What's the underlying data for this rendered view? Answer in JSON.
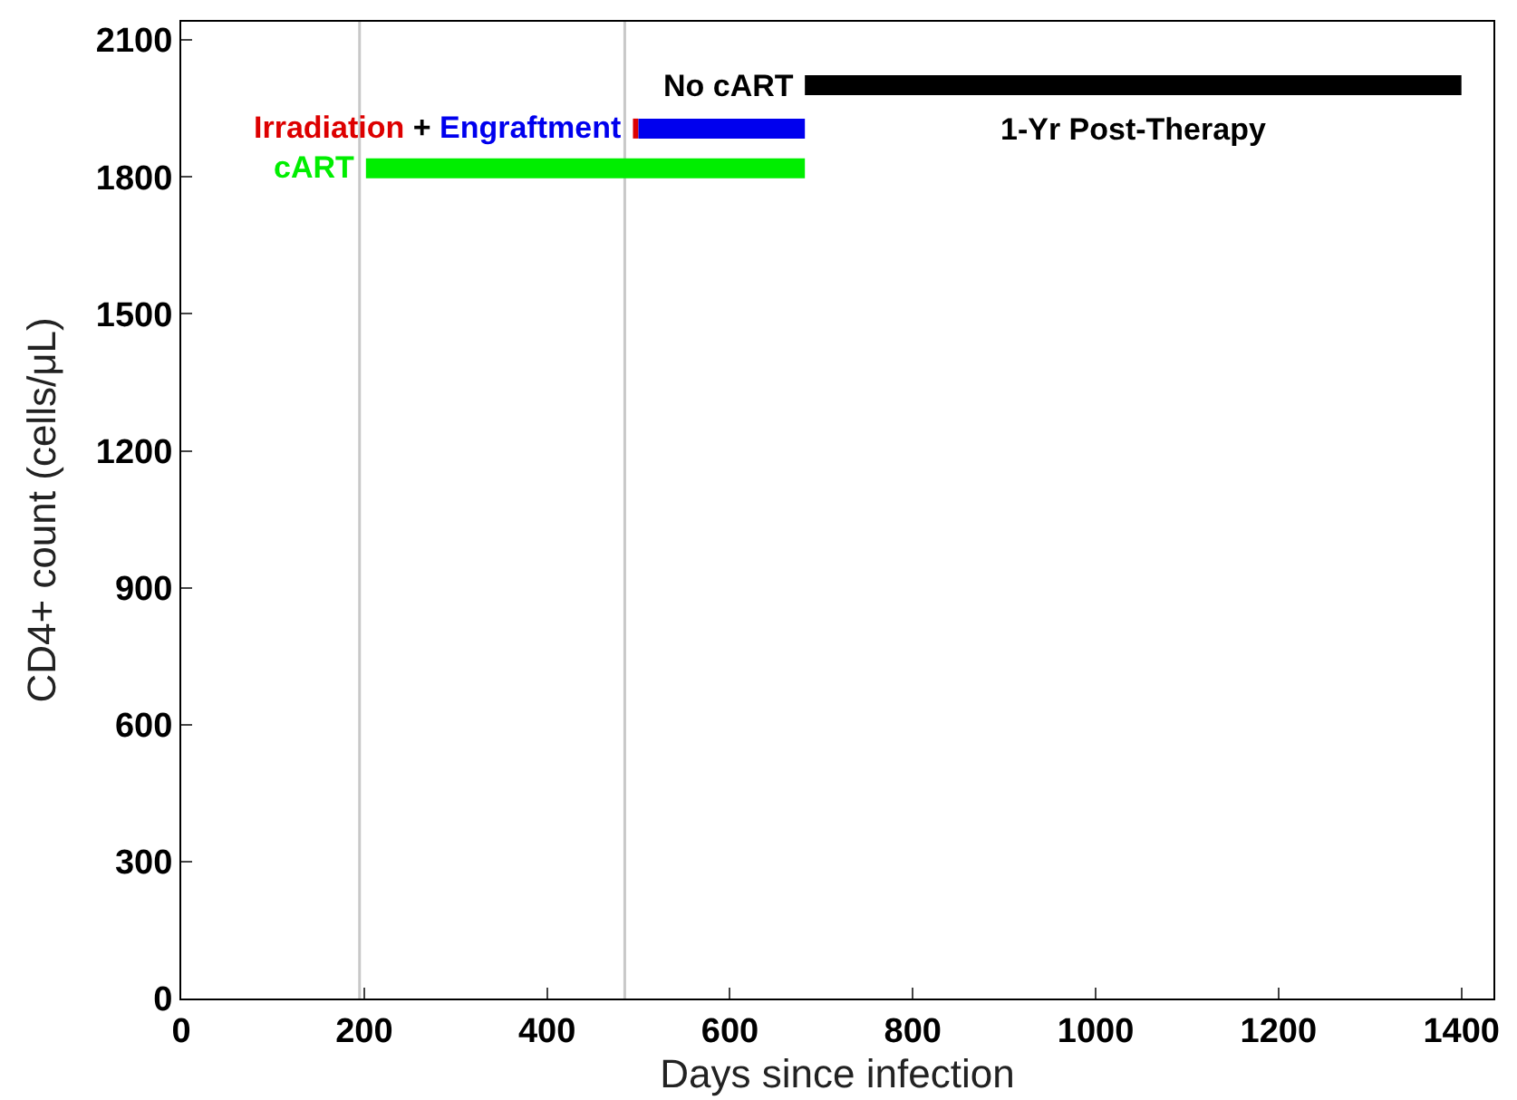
{
  "chart_data": {
    "type": "line",
    "xlabel": "Days since infection",
    "ylabel": "CD4+ count (cells/μL)",
    "xlim": [
      0,
      1435
    ],
    "xticks": [
      0,
      200,
      400,
      600,
      800,
      1000,
      1200,
      1400
    ],
    "ylim": [
      0,
      2140
    ],
    "yticks": [
      0,
      300,
      600,
      900,
      1200,
      1500,
      1800,
      2100
    ],
    "grid": false,
    "legend": false,
    "marker": "none",
    "line_style": "solid",
    "series": [
      {
        "name": "cART",
        "color": "#00ee00",
        "x": [
          202,
          682
        ],
        "values": [
          1819,
          1819
        ]
      },
      {
        "name": "Irradiation",
        "color": "#dd0000",
        "x": [
          494,
          500
        ],
        "values": [
          1906,
          1906
        ]
      },
      {
        "name": "Engraftment",
        "color": "#0000ee",
        "x": [
          500,
          682
        ],
        "values": [
          1906,
          1906
        ]
      },
      {
        "name": "No cART",
        "color": "#000000",
        "x": [
          682,
          1400
        ],
        "values": [
          2001,
          2001
        ]
      }
    ],
    "ref_lines": [
      {
        "axis": "x",
        "value": 195,
        "label": null,
        "color": "#c8c8c8"
      },
      {
        "axis": "x",
        "value": 485,
        "label": null,
        "color": "#c8c8c8"
      }
    ],
    "annotations": [
      "+",
      "1-Yr Post-Therapy"
    ]
  }
}
